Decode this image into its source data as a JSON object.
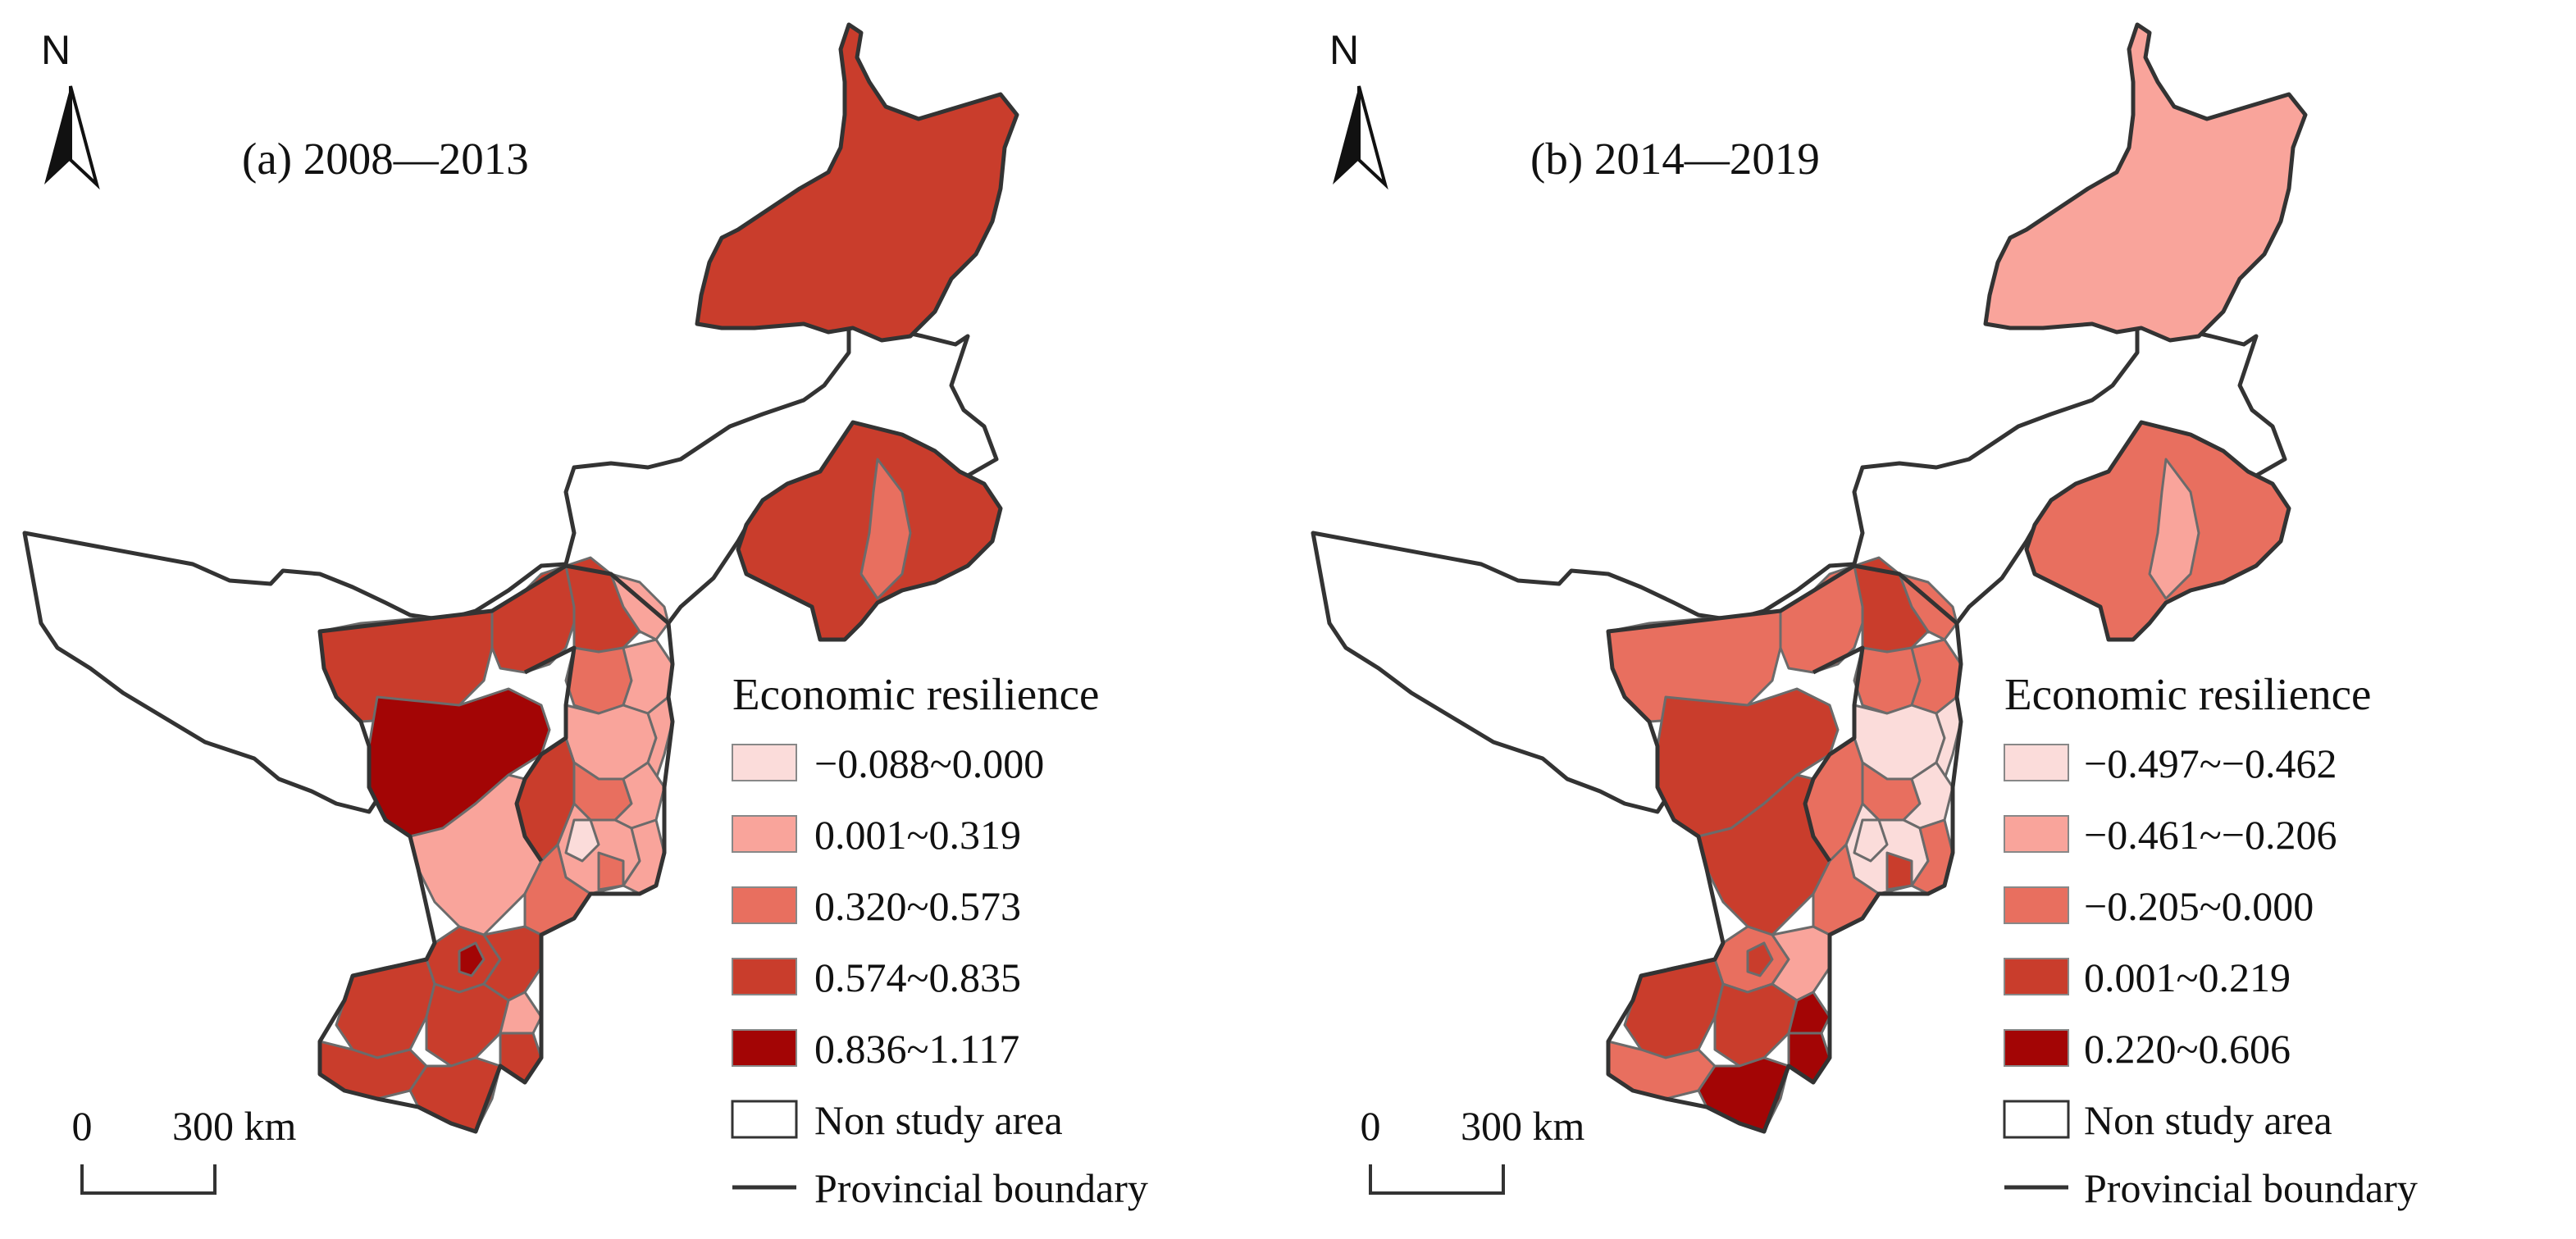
{
  "panels": [
    {
      "title": "(a) 2008—2013",
      "north": "N",
      "scale": {
        "zero": "0",
        "distance": "300 km"
      },
      "legend": {
        "title": "Economic resilience",
        "classes": [
          {
            "label": "−0.088~0.000",
            "color": "#fbdcda"
          },
          {
            "label": "0.001~0.319",
            "color": "#f9a49b"
          },
          {
            "label": "0.320~0.573",
            "color": "#e86f5f"
          },
          {
            "label": "0.574~0.835",
            "color": "#c93d2c"
          },
          {
            "label": "0.836~1.117",
            "color": "#a30505"
          }
        ],
        "non_study": "Non study area",
        "boundary": "Provincial boundary"
      },
      "region_classes": [
        3,
        3,
        2,
        3,
        3,
        3,
        2,
        1,
        1,
        4,
        1,
        1,
        2,
        1,
        1,
        3,
        1,
        0,
        2,
        1,
        2,
        3,
        3,
        3,
        4,
        3,
        3,
        1,
        3,
        3
      ]
    },
    {
      "title": "(b) 2014—2019",
      "north": "N",
      "scale": {
        "zero": "0",
        "distance": "300 km"
      },
      "legend": {
        "title": "Economic resilience",
        "classes": [
          {
            "label": "−0.497~−0.462",
            "color": "#fbdcda"
          },
          {
            "label": "−0.461~−0.206",
            "color": "#f9a49b"
          },
          {
            "label": "−0.205~0.000",
            "color": "#e86f5f"
          },
          {
            "label": "0.001~0.219",
            "color": "#c93d2c"
          },
          {
            "label": "0.220~0.606",
            "color": "#a30505"
          }
        ],
        "non_study": "Non study area",
        "boundary": "Provincial boundary"
      },
      "region_classes": [
        1,
        2,
        1,
        2,
        2,
        3,
        2,
        2,
        2,
        3,
        0,
        0,
        2,
        0,
        0,
        2,
        2,
        0,
        3,
        3,
        2,
        2,
        3,
        3,
        3,
        1,
        2,
        4,
        4,
        4
      ]
    }
  ]
}
